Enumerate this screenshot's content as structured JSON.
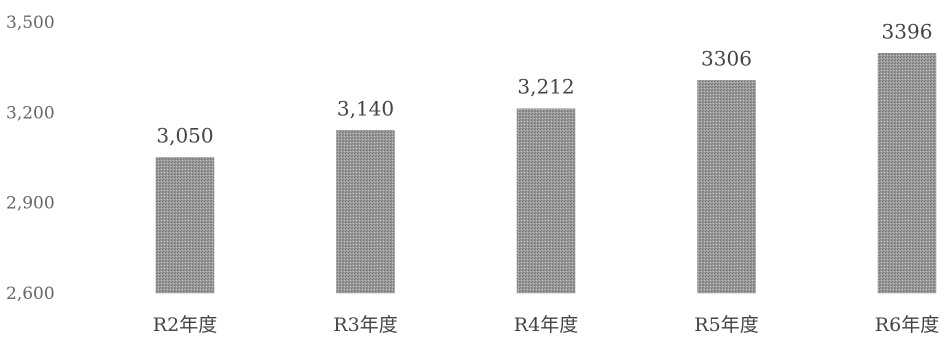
{
  "chart_data": {
    "type": "bar",
    "categories": [
      "R2年度",
      "R3年度",
      "R4年度",
      "R5年度",
      "R6年度"
    ],
    "values": [
      3050,
      3140,
      3212,
      3306,
      3396
    ],
    "data_labels": [
      "3,050",
      "3,140",
      "3,212",
      "3306",
      "3396"
    ],
    "y_ticks": [
      {
        "value": 3500,
        "label": "3,500"
      },
      {
        "value": 3200,
        "label": "3,200"
      },
      {
        "value": 2900,
        "label": "2,900"
      },
      {
        "value": 2600,
        "label": "2,600"
      }
    ],
    "ylim": [
      2600,
      3500
    ],
    "grid": false,
    "legend": "none",
    "bar_color": "#8a8a8a",
    "title": "",
    "xlabel": "",
    "ylabel": ""
  }
}
